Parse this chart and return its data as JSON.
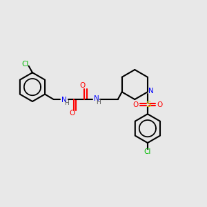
{
  "background_color": "#e8e8e8",
  "bond_color": "#000000",
  "nitrogen_color": "#0000ff",
  "oxygen_color": "#ff0000",
  "sulfur_color": "#cccc00",
  "chlorine_color": "#00bb00",
  "line_width": 1.5,
  "figsize": [
    3.0,
    3.0
  ],
  "dpi": 100,
  "xlim": [
    0,
    10
  ],
  "ylim": [
    0,
    10
  ]
}
